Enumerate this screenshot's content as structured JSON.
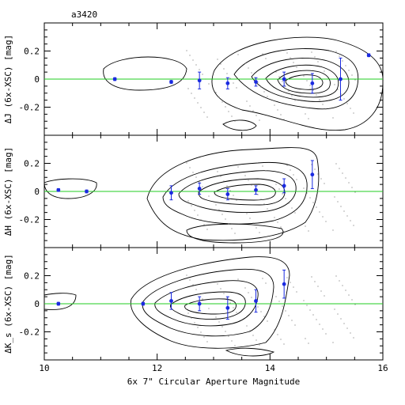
{
  "chart_data": [
    {
      "type": "scatter",
      "title": "a3420",
      "ylabel": "ΔJ (6x-XSC) [mag]",
      "xlim": [
        10,
        16
      ],
      "ylim": [
        -0.4,
        0.4
      ],
      "yticks": [
        "0.2",
        "0",
        "-0.2"
      ],
      "yticks_values": [
        0.2,
        0,
        -0.2
      ],
      "reference_line": 0,
      "series": [
        {
          "points": [
            {
              "x": 11.25,
              "y": 0.0,
              "err": 0.01
            },
            {
              "x": 12.25,
              "y": -0.02,
              "err": 0.01
            },
            {
              "x": 12.75,
              "y": -0.01,
              "err": 0.06
            },
            {
              "x": 13.25,
              "y": -0.03,
              "err": 0.04
            },
            {
              "x": 13.75,
              "y": -0.02,
              "err": 0.03
            },
            {
              "x": 14.25,
              "y": 0.0,
              "err": 0.05
            },
            {
              "x": 14.75,
              "y": -0.03,
              "err": 0.07
            },
            {
              "x": 15.25,
              "y": 0.0,
              "err": 0.15
            },
            {
              "x": 15.75,
              "y": 0.17,
              "err": 0.01
            }
          ]
        }
      ]
    },
    {
      "type": "scatter",
      "ylabel": "ΔH (6x-XSC) [mag]",
      "xlim": [
        10,
        16
      ],
      "ylim": [
        -0.4,
        0.4
      ],
      "yticks": [
        "0.2",
        "0",
        "-0.2"
      ],
      "yticks_values": [
        0.2,
        0,
        -0.2
      ],
      "reference_line": 0,
      "series": [
        {
          "points": [
            {
              "x": 10.25,
              "y": 0.01,
              "err": 0.01
            },
            {
              "x": 10.75,
              "y": 0.0,
              "err": 0.01
            },
            {
              "x": 12.25,
              "y": -0.01,
              "err": 0.05
            },
            {
              "x": 12.75,
              "y": 0.02,
              "err": 0.04
            },
            {
              "x": 13.25,
              "y": -0.02,
              "err": 0.04
            },
            {
              "x": 13.75,
              "y": 0.01,
              "err": 0.03
            },
            {
              "x": 14.25,
              "y": 0.04,
              "err": 0.05
            },
            {
              "x": 14.75,
              "y": 0.12,
              "err": 0.1
            }
          ]
        }
      ]
    },
    {
      "type": "scatter",
      "ylabel": "ΔK_s (6x-XSC) [mag]",
      "xlabel": "6x 7\" Circular Aperture Magnitude",
      "xlim": [
        10,
        16
      ],
      "ylim": [
        -0.4,
        0.4
      ],
      "yticks": [
        "0.2",
        "0",
        "-0.2"
      ],
      "yticks_values": [
        0.2,
        0,
        -0.2
      ],
      "xticks": [
        "10",
        "12",
        "14",
        "16"
      ],
      "xticks_values": [
        10,
        12,
        14,
        16
      ],
      "reference_line": 0,
      "series": [
        {
          "points": [
            {
              "x": 10.25,
              "y": 0.0,
              "err": 0.01
            },
            {
              "x": 11.75,
              "y": 0.0,
              "err": 0.01
            },
            {
              "x": 12.25,
              "y": 0.02,
              "err": 0.06
            },
            {
              "x": 12.75,
              "y": 0.0,
              "err": 0.05
            },
            {
              "x": 13.25,
              "y": -0.03,
              "err": 0.08
            },
            {
              "x": 13.75,
              "y": 0.02,
              "err": 0.08
            },
            {
              "x": 14.25,
              "y": 0.14,
              "err": 0.1
            }
          ]
        }
      ]
    }
  ]
}
